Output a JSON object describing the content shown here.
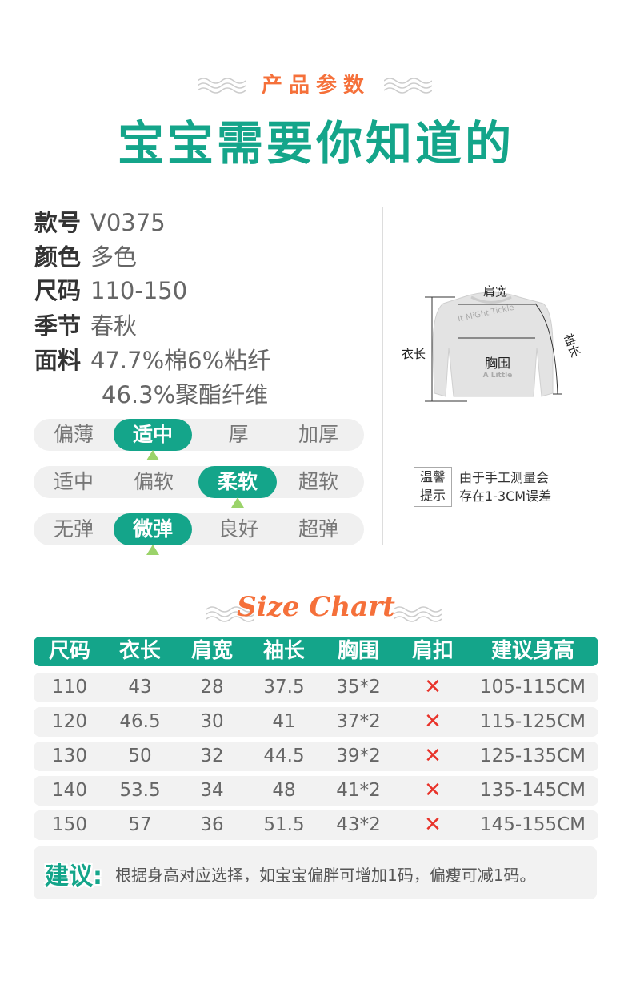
{
  "header": {
    "subtitle": "产品参数",
    "title": "宝宝需要你知道的"
  },
  "specs": [
    {
      "label": "款号",
      "value": "V0375"
    },
    {
      "label": "颜色",
      "value": "多色"
    },
    {
      "label": "尺码",
      "value": "110-150"
    },
    {
      "label": "季节",
      "value": "春秋"
    },
    {
      "label": "面料",
      "value": "47.7%棉6%粘纤",
      "value2": "46.3%聚酯纤维"
    }
  ],
  "attributes": [
    {
      "options": [
        "偏薄",
        "适中",
        "厚",
        "加厚"
      ],
      "selected": 1
    },
    {
      "options": [
        "适中",
        "偏软",
        "柔软",
        "超软"
      ],
      "selected": 2
    },
    {
      "options": [
        "无弹",
        "微弹",
        "良好",
        "超弹"
      ],
      "selected": 1
    }
  ],
  "diagram": {
    "shoulder": "肩宽",
    "length": "衣长",
    "sleeve": "袖长",
    "chest": "胸围",
    "print_top": "It MiGht Tickle",
    "print_bottom": "A Little",
    "tip_label_1": "温馨",
    "tip_label_2": "提示",
    "tip_1": "由于手工测量会",
    "tip_2": "存在1-3CM误差"
  },
  "size_chart": {
    "title": "Size Chart",
    "headers": [
      "尺码",
      "衣长",
      "肩宽",
      "袖长",
      "胸围",
      "肩扣",
      "建议身高"
    ],
    "rows": [
      [
        "110",
        "43",
        "28",
        "37.5",
        "35*2",
        "✕",
        "105-115CM"
      ],
      [
        "120",
        "46.5",
        "30",
        "41",
        "37*2",
        "✕",
        "115-125CM"
      ],
      [
        "130",
        "50",
        "32",
        "44.5",
        "39*2",
        "✕",
        "125-135CM"
      ],
      [
        "140",
        "53.5",
        "34",
        "48",
        "41*2",
        "✕",
        "135-145CM"
      ],
      [
        "150",
        "57",
        "36",
        "51.5",
        "43*2",
        "✕",
        "145-155CM"
      ]
    ]
  },
  "suggestion": {
    "label": "建议:",
    "text": "根据身高对应选择，如宝宝偏胖可增加1码，偏瘦可减1码。"
  },
  "colors": {
    "teal": "#14a58a",
    "orange": "#f5703a",
    "cross": "#e8332a"
  }
}
